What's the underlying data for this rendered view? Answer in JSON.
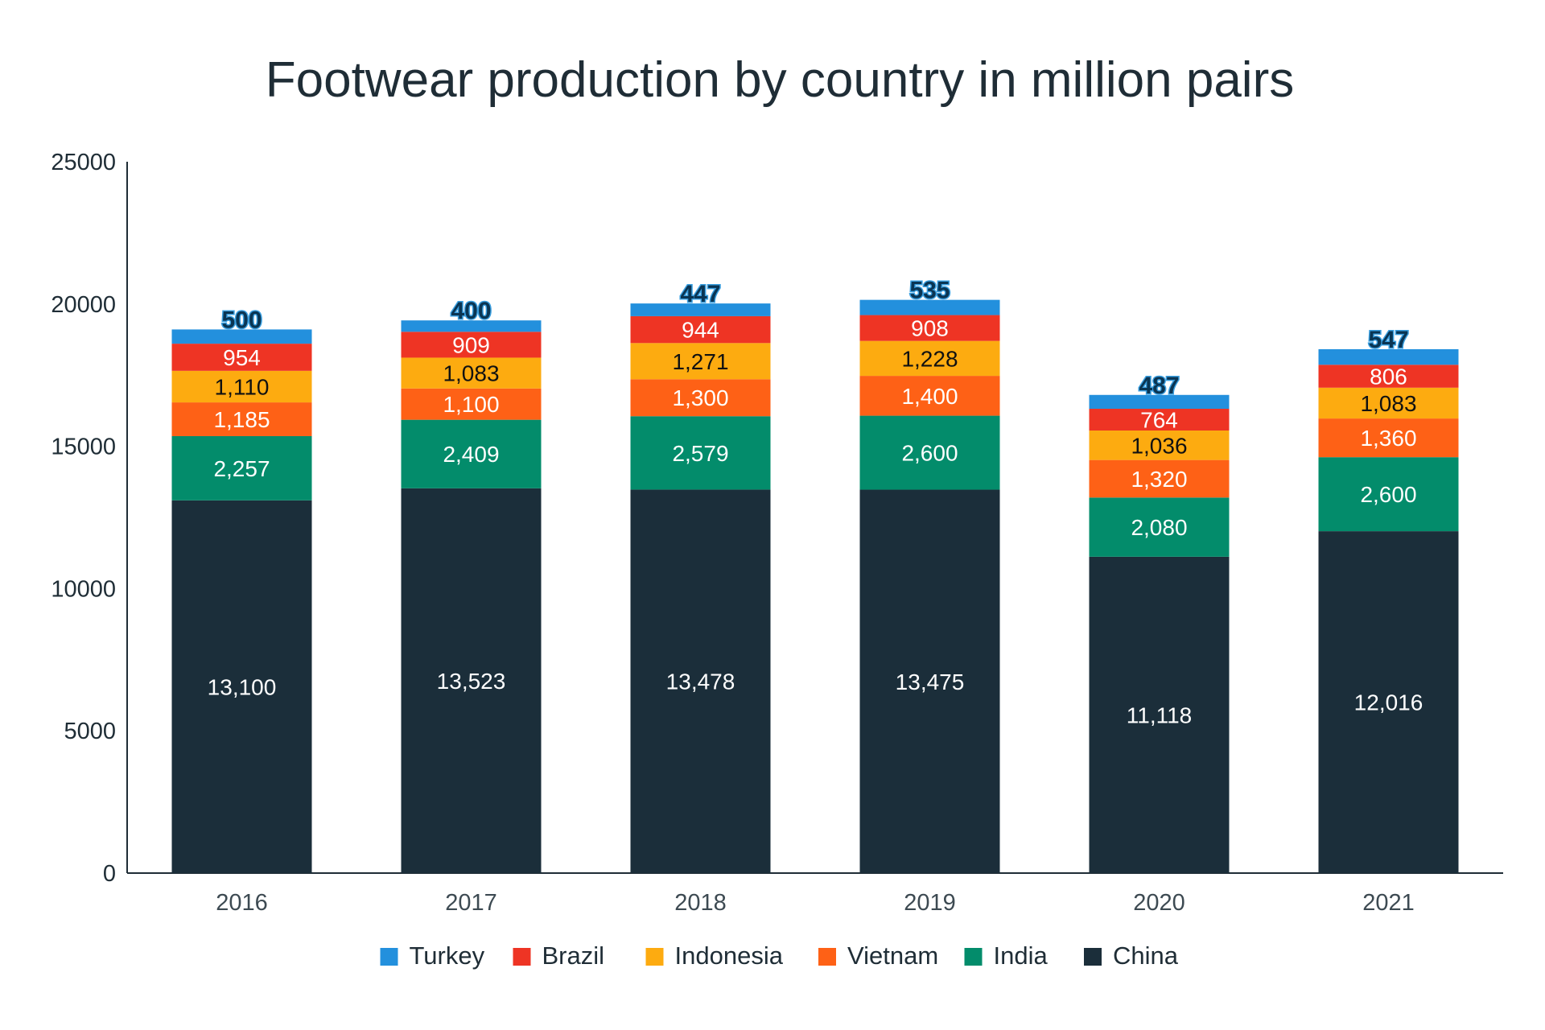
{
  "chart_data": {
    "type": "bar",
    "stacked": true,
    "title": "Footwear production by country in million pairs",
    "xlabel": "",
    "ylabel": "",
    "categories": [
      "2016",
      "2017",
      "2018",
      "2019",
      "2020",
      "2021"
    ],
    "ylim": [
      0,
      25000
    ],
    "yticks": [
      "0",
      "5000",
      "10000",
      "15000",
      "20000",
      "25000"
    ],
    "grid": false,
    "legend_position": "bottom-center",
    "legend_order": [
      "Turkey",
      "Brazil",
      "Indonesia",
      "Vietnam",
      "India",
      "China"
    ],
    "series": [
      {
        "name": "China",
        "color": "#1b2e3a",
        "label_color": "#ffffff",
        "values": [
          13100,
          13523,
          13478,
          13475,
          11118,
          12016
        ],
        "labels": [
          "13,100",
          "13,523",
          "13,478",
          "13,475",
          "11,118",
          "12,016"
        ]
      },
      {
        "name": "India",
        "color": "#038c6b",
        "label_color": "#ffffff",
        "values": [
          2257,
          2409,
          2579,
          2600,
          2080,
          2600
        ],
        "labels": [
          "2,257",
          "2,409",
          "2,579",
          "2,600",
          "2,080",
          "2,600"
        ]
      },
      {
        "name": "Vietnam",
        "color": "#fe6116",
        "label_color": "#ffffff",
        "values": [
          1185,
          1100,
          1300,
          1400,
          1320,
          1360
        ],
        "labels": [
          "1,185",
          "1,100",
          "1,300",
          "1,400",
          "1,320",
          "1,360"
        ]
      },
      {
        "name": "Indonesia",
        "color": "#fdab10",
        "label_color": "#111111",
        "values": [
          1110,
          1083,
          1271,
          1228,
          1036,
          1083
        ],
        "labels": [
          "1,110",
          "1,083",
          "1,271",
          "1,228",
          "1,036",
          "1,083"
        ]
      },
      {
        "name": "Brazil",
        "color": "#ee3424",
        "label_color": "#ffffff",
        "values": [
          954,
          909,
          944,
          908,
          764,
          806
        ],
        "labels": [
          "954",
          "909",
          "944",
          "908",
          "764",
          "806"
        ]
      },
      {
        "name": "Turkey",
        "color": "#2390dd",
        "label_color": "#0a3553",
        "values": [
          500,
          400,
          447,
          535,
          487,
          547
        ],
        "labels": [
          "500",
          "400",
          "447",
          "535",
          "487",
          "547"
        ],
        "label_position": "above"
      }
    ],
    "axis_color": "#1f2d36"
  }
}
